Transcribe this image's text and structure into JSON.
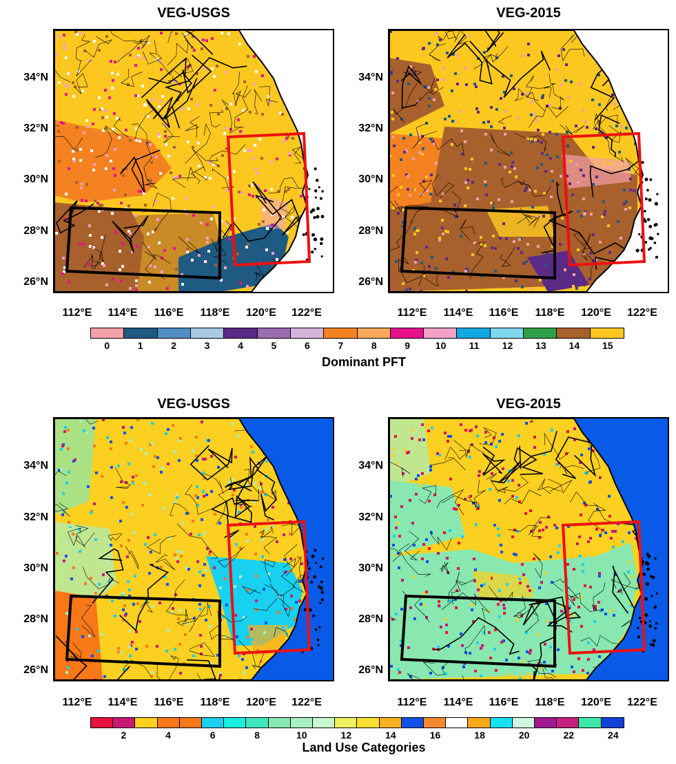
{
  "panels": [
    {
      "title": "VEG-USGS",
      "scheme": "pft_usgs"
    },
    {
      "title": "VEG-2015",
      "scheme": "pft_2015"
    },
    {
      "title": "VEG-USGS",
      "scheme": "lu_usgs"
    },
    {
      "title": "VEG-2015",
      "scheme": "lu_2015"
    }
  ],
  "lat_labels": [
    "34°N",
    "32°N",
    "30°N",
    "28°N",
    "26°N"
  ],
  "lon_labels": [
    "112°E",
    "114°E",
    "116°E",
    "118°E",
    "120°E",
    "122°E"
  ],
  "pft_colorbar": {
    "title": "Dominant PFT",
    "labels": [
      "0",
      "1",
      "2",
      "3",
      "4",
      "5",
      "6",
      "7",
      "8",
      "9",
      "10",
      "11",
      "12",
      "13",
      "14",
      "15"
    ],
    "colors": [
      "#f4a0a8",
      "#1f5a82",
      "#4f8fc4",
      "#a8c8e4",
      "#5a2a86",
      "#9b6cb0",
      "#d8b4dc",
      "#f58220",
      "#f8a858",
      "#e8108c",
      "#f4a0c8",
      "#10a8e0",
      "#80d8f0",
      "#30a048",
      "#a8602c",
      "#fcc820"
    ]
  },
  "lu_colorbar": {
    "title": "Land Use Categories",
    "labels": [
      "2",
      "4",
      "6",
      "8",
      "10",
      "12",
      "14",
      "16",
      "18",
      "20",
      "22",
      "24"
    ],
    "colors": [
      "#e8103c",
      "#c81874",
      "#fcd020",
      "#f87818",
      "#f87818",
      "#18d0f0",
      "#18f0e0",
      "#40e8c0",
      "#88e8b0",
      "#a8f0c0",
      "#c8f8d0",
      "#f0f060",
      "#f8e030",
      "#f8b020",
      "#1050e8",
      "#f88830",
      "#ffffff",
      "#f8a818",
      "#18e0f0",
      "#d0f8e0",
      "#a01890",
      "#c82080",
      "#40e8a8",
      "#1040d8"
    ]
  }
}
